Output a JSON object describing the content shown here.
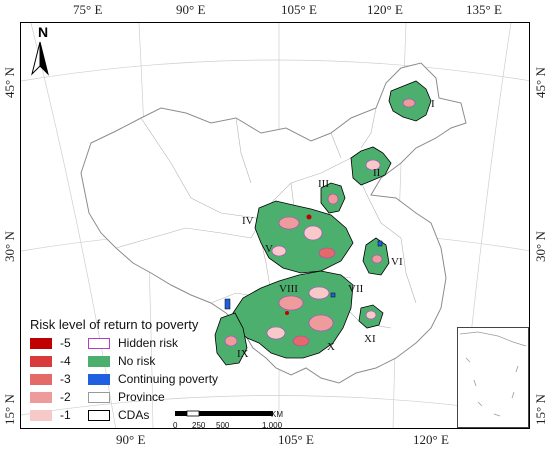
{
  "map": {
    "top_lon_labels": [
      "75° E",
      "90° E",
      "105° E",
      "120° E",
      "135° E"
    ],
    "bottom_lon_labels": [
      "90° E",
      "105° E",
      "120° E"
    ],
    "left_lat_labels": [
      "45° N",
      "30° N",
      "15° N"
    ],
    "right_lat_labels": [
      "45° N",
      "30° N",
      "15° N"
    ],
    "north_label": "N",
    "regions": [
      "I",
      "II",
      "III",
      "IV",
      "V",
      "VI",
      "VII",
      "VIII",
      "IX",
      "X",
      "XI"
    ]
  },
  "legend": {
    "title": "Risk level of return to poverty",
    "levels": [
      {
        "label": "-5",
        "color": "#c00000"
      },
      {
        "label": "-4",
        "color": "#d93a3a"
      },
      {
        "label": "-3",
        "color": "#e46a6a"
      },
      {
        "label": "-2",
        "color": "#ee9b9b"
      },
      {
        "label": "-1",
        "color": "#f7c9c9"
      }
    ],
    "items": [
      {
        "label": "Hidden risk",
        "style": "purple-outline",
        "color": "#b03fc8"
      },
      {
        "label": "No risk",
        "style": "fill",
        "color": "#4caf6e"
      },
      {
        "label": "Continuing poverty",
        "style": "fill",
        "color": "#1f5fe0"
      },
      {
        "label": "Province",
        "style": "gray-outline",
        "color": "#9a9a9a"
      },
      {
        "label": "CDAs",
        "style": "black-outline",
        "color": "#000000"
      }
    ]
  },
  "scale": {
    "ticks": [
      "0",
      "250",
      "500",
      "1,000"
    ],
    "unit": "KM"
  }
}
